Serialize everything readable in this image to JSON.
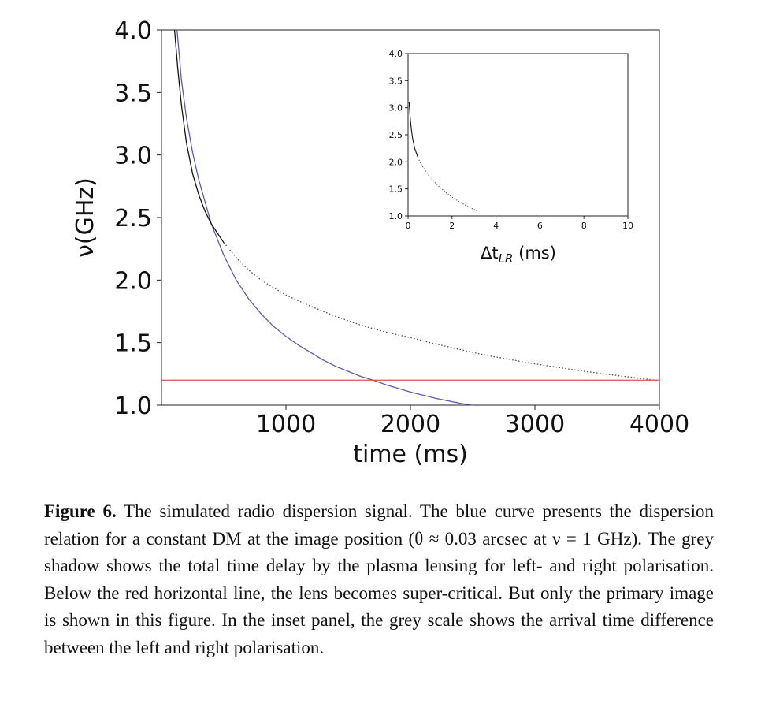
{
  "chart_data": [
    {
      "type": "line",
      "xlabel": "time (ms)",
      "ylabel": "ν(GHz)",
      "xlim": [
        0,
        4000
      ],
      "ylim": [
        1.0,
        4.0
      ],
      "x_ticks": [
        1000,
        2000,
        3000,
        4000
      ],
      "x_tick_labels": [
        "1000",
        "2000",
        "3000",
        "4000"
      ],
      "y_ticks": [
        1.0,
        1.5,
        2.0,
        2.5,
        3.0,
        3.5,
        4.0
      ],
      "y_tick_labels": [
        "1.0",
        "1.5",
        "2.0",
        "2.5",
        "3.0",
        "3.5",
        "4.0"
      ],
      "grid": false,
      "series": [
        {
          "color": "#5a5ab8",
          "style": "solid",
          "x": [
            125,
            160,
            200,
            250,
            300,
            400,
            500,
            600,
            700,
            800,
            900,
            1000,
            1100,
            1200,
            1300,
            1400,
            1500,
            1600,
            1700,
            1800,
            1900,
            2000,
            2100,
            2200,
            2300,
            2400,
            2500
          ],
          "y": [
            4.0,
            3.6,
            3.3,
            3.02,
            2.8,
            2.45,
            2.2,
            2.0,
            1.85,
            1.73,
            1.63,
            1.55,
            1.48,
            1.42,
            1.36,
            1.31,
            1.27,
            1.23,
            1.2,
            1.165,
            1.135,
            1.105,
            1.08,
            1.055,
            1.035,
            1.015,
            1.0
          ]
        },
        {
          "color": "#111111",
          "style": "solid-to-dotted",
          "x": [
            105,
            130,
            160,
            200,
            250,
            300,
            350,
            400,
            500,
            600,
            700,
            800,
            1000,
            1200,
            1400,
            1600,
            1800,
            2000,
            2200,
            2400,
            2600,
            2800,
            3000,
            3200,
            3400,
            3600,
            3800,
            4000
          ],
          "y": [
            4.0,
            3.7,
            3.4,
            3.1,
            2.85,
            2.68,
            2.55,
            2.45,
            2.3,
            2.18,
            2.08,
            2.0,
            1.88,
            1.79,
            1.71,
            1.64,
            1.585,
            1.54,
            1.49,
            1.445,
            1.4,
            1.365,
            1.33,
            1.3,
            1.27,
            1.245,
            1.22,
            1.195
          ]
        },
        {
          "color": "#e05050",
          "style": "solid",
          "x": [
            0,
            4000
          ],
          "y": [
            1.2,
            1.2
          ]
        }
      ]
    },
    {
      "type": "line",
      "xlabel": "Δt_LR (ms)",
      "ylabel": "",
      "xlim": [
        0,
        10
      ],
      "ylim": [
        1.0,
        4.0
      ],
      "x_ticks": [
        0,
        2,
        4,
        6,
        8,
        10
      ],
      "x_tick_labels": [
        "0",
        "2",
        "4",
        "6",
        "8",
        "10"
      ],
      "y_ticks": [
        1.0,
        1.5,
        2.0,
        2.5,
        3.0,
        3.5,
        4.0
      ],
      "y_tick_labels": [
        "1.0",
        "1.5",
        "2.0",
        "2.5",
        "3.0",
        "3.5",
        "4.0"
      ],
      "grid": false,
      "series": [
        {
          "color": "#111111",
          "style": "solid-to-dotted",
          "x": [
            0.05,
            0.1,
            0.15,
            0.2,
            0.3,
            0.45,
            0.6,
            0.8,
            1.0,
            1.2,
            1.45,
            1.7,
            2.0,
            2.3,
            2.6,
            2.9,
            3.2
          ],
          "y": [
            3.1,
            2.8,
            2.6,
            2.45,
            2.25,
            2.08,
            1.95,
            1.83,
            1.72,
            1.63,
            1.53,
            1.44,
            1.35,
            1.27,
            1.2,
            1.14,
            1.08
          ]
        }
      ]
    }
  ],
  "caption": {
    "label": "Figure 6.",
    "text": " The simulated radio dispersion signal. The blue curve presents the dispersion relation for a constant DM at the image position (θ ≈ 0.03 arcsec at ν = 1 GHz). The grey shadow shows the total time delay by the plasma lensing for left- and right polarisation. Below the red horizontal line, the lens becomes super-critical. But only the primary image is shown in this figure. In the inset panel, the grey scale shows the arrival time difference between the left and right polarisation."
  }
}
